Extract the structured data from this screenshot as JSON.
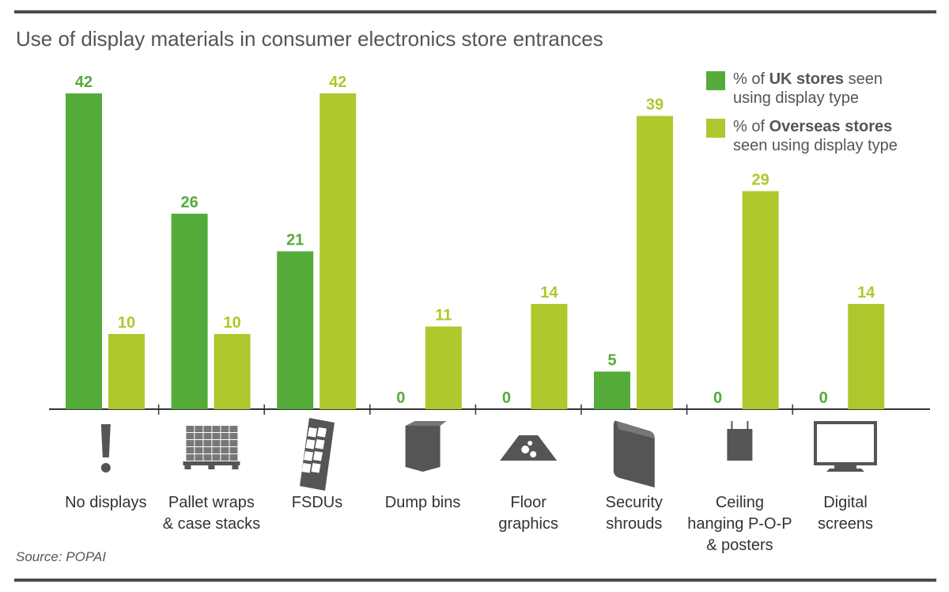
{
  "title": "Use of display materials in consumer electronics store entrances",
  "source": "Source: POPAI",
  "colors": {
    "uk": "#55ab3a",
    "overseas": "#b0c72d",
    "icon": "#555555",
    "axis": "#333333"
  },
  "legend": [
    {
      "pre": "% of ",
      "strong": "UK stores",
      "post": " seen using display type",
      "color": "#55ab3a"
    },
    {
      "pre": "% of ",
      "strong": "Overseas stores",
      "post": " seen using display type",
      "color": "#b0c72d"
    }
  ],
  "chart_data": {
    "type": "bar",
    "title": "Use of display materials in consumer electronics store entrances",
    "categories": [
      "No displays",
      "Pallet wraps & case stacks",
      "FSDUs",
      "Dump bins",
      "Floor graphics",
      "Security shrouds",
      "Ceiling hanging P-O-P & posters",
      "Digital screens"
    ],
    "category_lines": [
      [
        "No displays"
      ],
      [
        "Pallet wraps",
        "& case stacks"
      ],
      [
        "FSDUs"
      ],
      [
        "Dump bins"
      ],
      [
        "Floor",
        "graphics"
      ],
      [
        "Security",
        "shrouds"
      ],
      [
        "Ceiling",
        "hanging P-O-P",
        "& posters"
      ],
      [
        "Digital",
        "screens"
      ]
    ],
    "icons": [
      "exclamation-icon",
      "pallet-icon",
      "fsdu-icon",
      "dump-bin-icon",
      "floor-graphic-icon",
      "security-shroud-icon",
      "ceiling-poster-icon",
      "digital-screen-icon"
    ],
    "series": [
      {
        "name": "% of UK stores seen using display type",
        "values": [
          42,
          26,
          21,
          0,
          0,
          5,
          0,
          0
        ]
      },
      {
        "name": "% of Overseas stores seen using display type",
        "values": [
          10,
          10,
          42,
          11,
          14,
          39,
          29,
          14
        ]
      }
    ],
    "ylim": [
      0,
      42
    ],
    "grid": false,
    "legend_position": "top-right"
  }
}
